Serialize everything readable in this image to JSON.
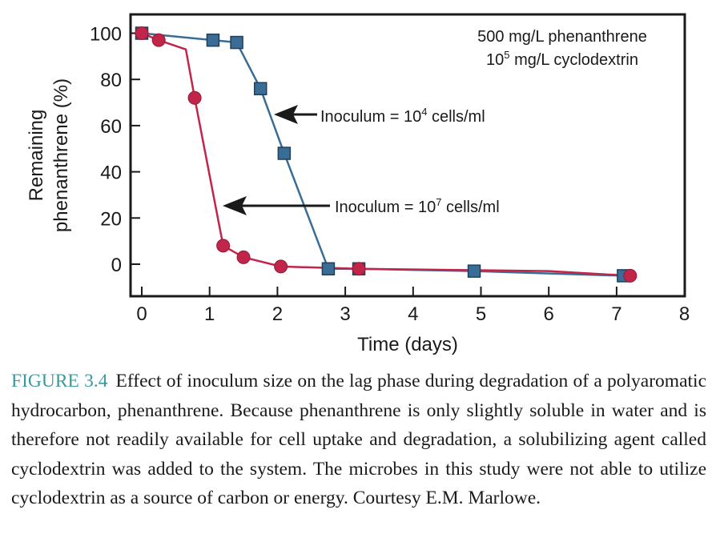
{
  "chart_data": {
    "type": "line",
    "xlabel": "Time (days)",
    "ylabel_line1": "Remaining",
    "ylabel_line2": "phenanthrene (%)",
    "xlim": [
      0,
      8
    ],
    "ylim": [
      -12,
      105
    ],
    "xticks": [
      "0",
      "1",
      "2",
      "3",
      "4",
      "5",
      "6",
      "7",
      "8"
    ],
    "yticks": [
      "0",
      "20",
      "40",
      "60",
      "80",
      "100"
    ],
    "grid": false,
    "conditions": {
      "line1": "500 mg/L phenanthrene",
      "line2_base": "10",
      "line2_sup": "5",
      "line2_rest": " mg/L cyclodextrin"
    },
    "series": [
      {
        "marker": "square",
        "color": "#3a6d96",
        "x": [
          0,
          1.05,
          1.4,
          1.75,
          2.1,
          2.75,
          3.2,
          4.9,
          7.1
        ],
        "y": [
          100,
          97,
          96,
          76,
          48,
          -2,
          -2,
          -3,
          -5
        ],
        "annotation": {
          "base": "Inoculum = 10",
          "sup": "4",
          "rest": " cells/ml"
        }
      },
      {
        "marker": "circle",
        "color": "#c2254a",
        "x": [
          0,
          0.25,
          0.65,
          0.78,
          1.2,
          1.5,
          2.05,
          3.2,
          6,
          7.2
        ],
        "y": [
          100,
          97,
          93,
          72,
          8,
          3,
          -1,
          -2,
          -3,
          -5
        ],
        "marker_index": [
          0,
          1,
          3,
          4,
          5,
          6,
          7,
          9
        ],
        "annotation": {
          "base": "Inoculum = 10",
          "sup": "7",
          "rest": " cells/ml"
        }
      }
    ]
  },
  "caption": {
    "label": "FIGURE 3.4",
    "text": "Effect of inoculum size on the lag phase during degradation of a polyaromatic hydrocarbon, phenanthrene. Because phenanthrene is only slightly soluble in water and is therefore not readily available for cell uptake and degradation, a solubilizing agent called cyclodextrin was added to the system. The microbes in this study were not able to utilize cyclodextrin as a source of carbon or energy. Courtesy E.M. Marlowe."
  }
}
